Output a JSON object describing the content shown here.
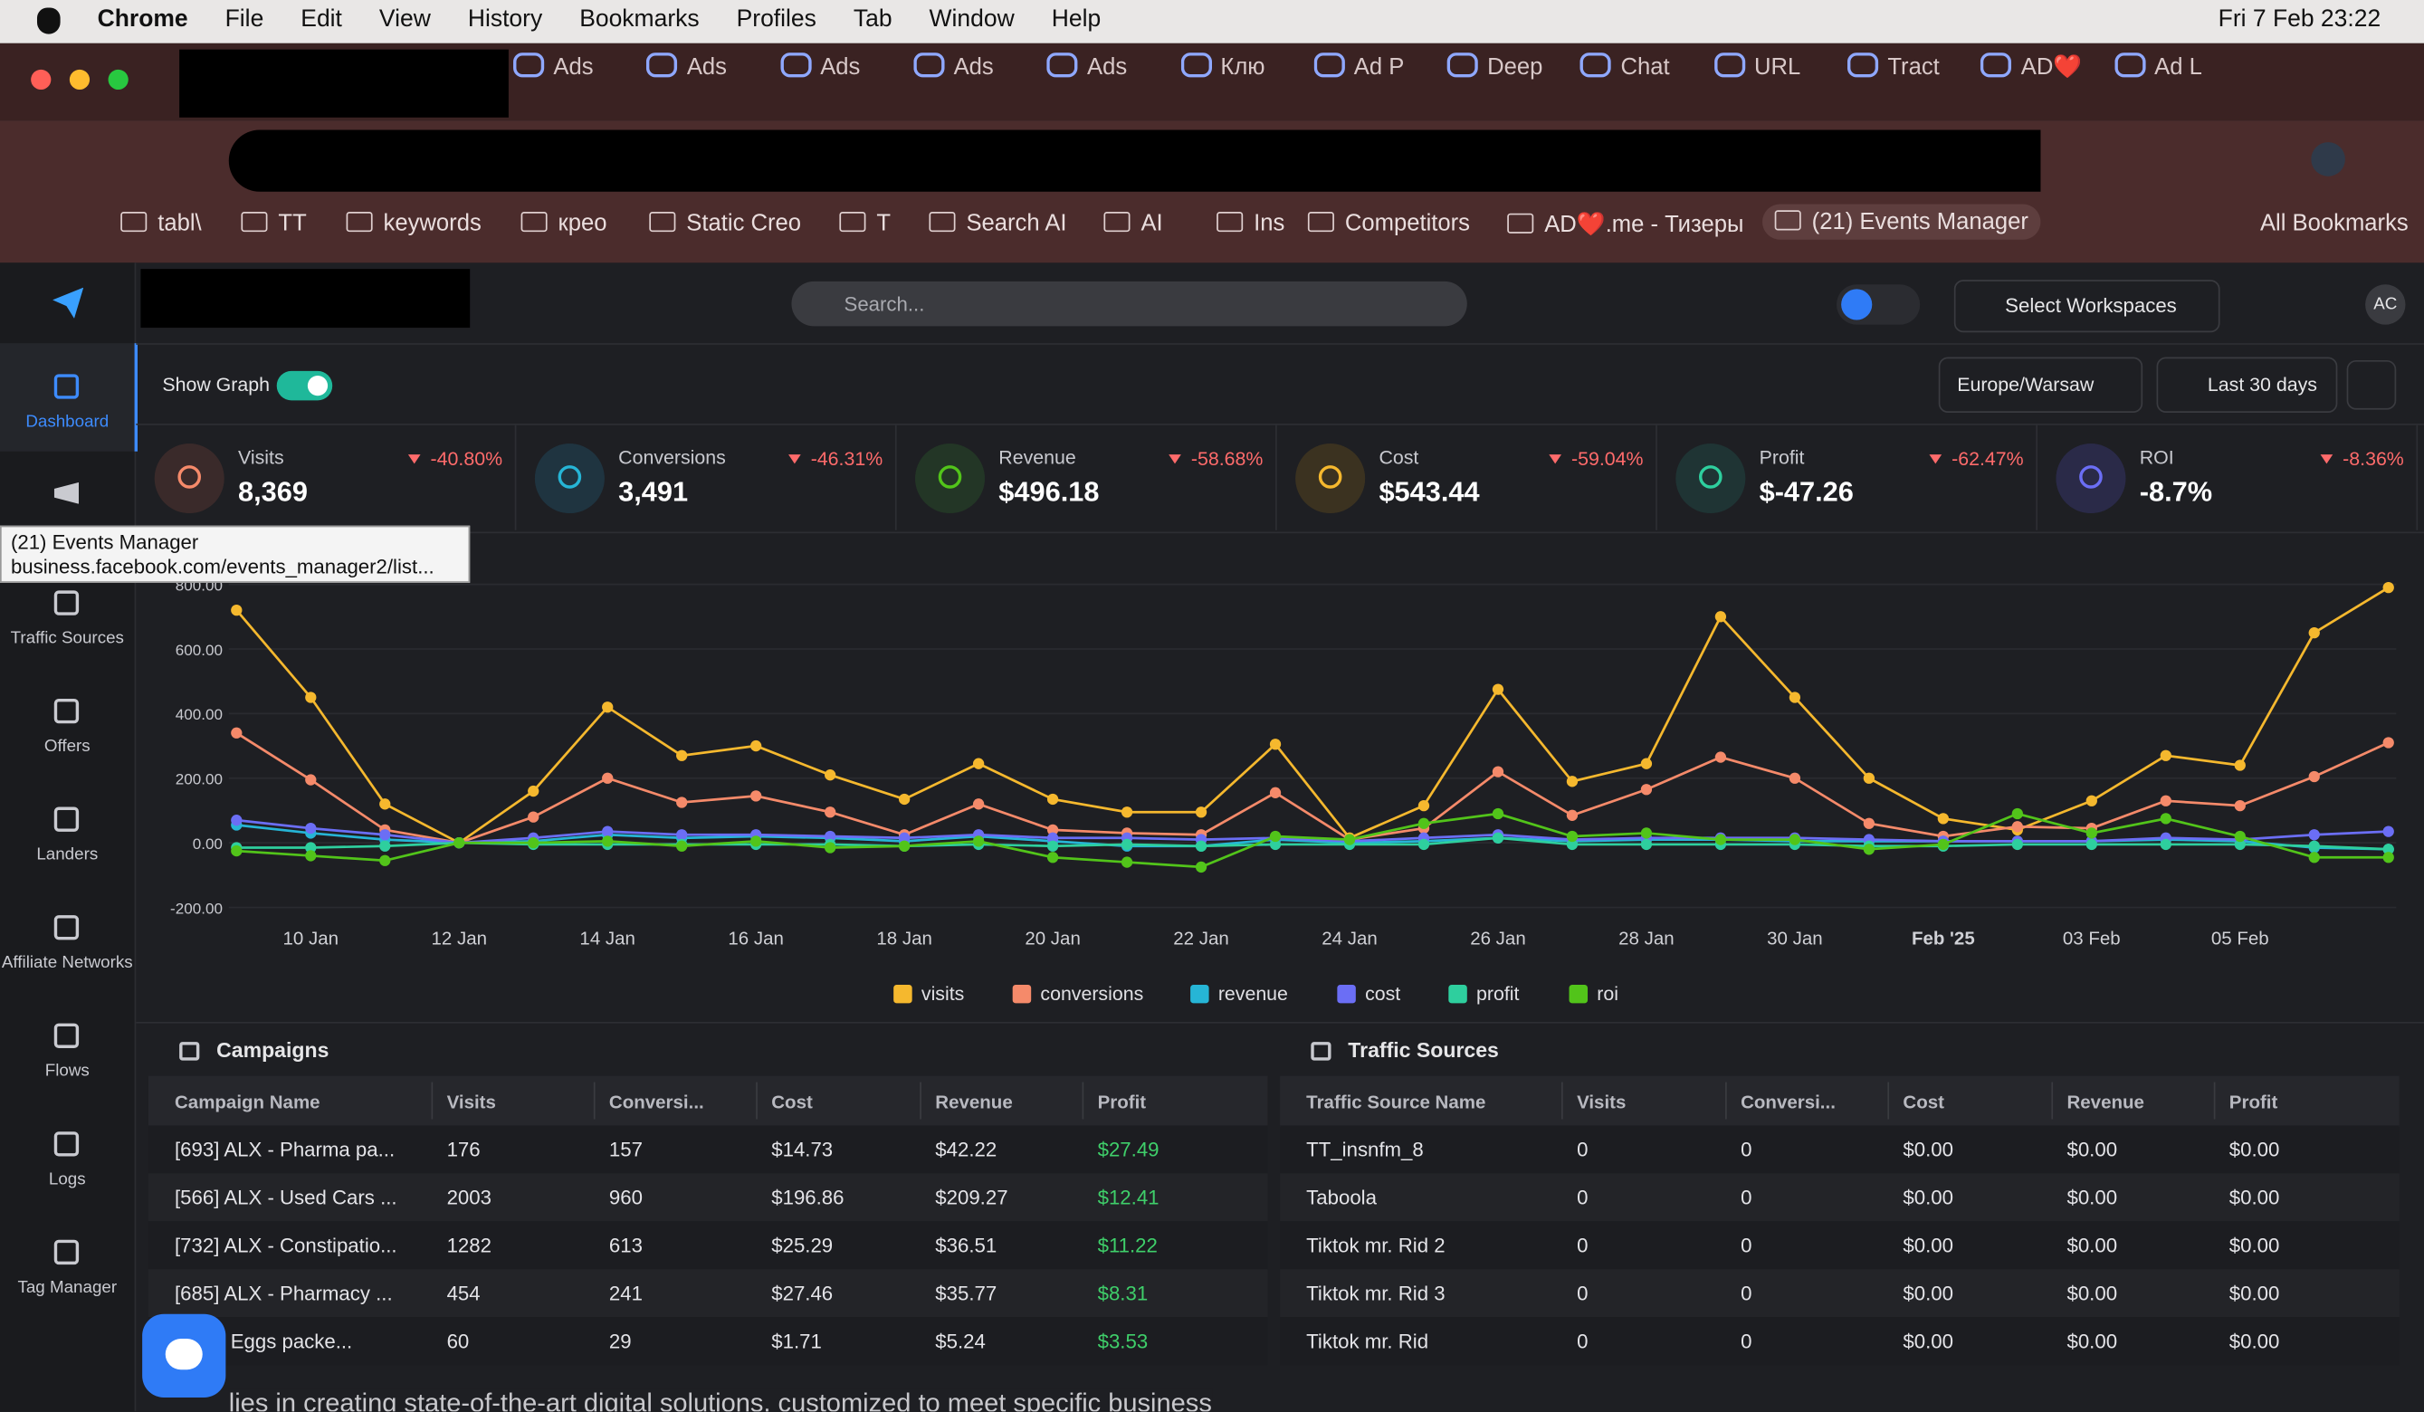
{
  "menubar": {
    "app": "Chrome",
    "menus": [
      "File",
      "Edit",
      "View",
      "History",
      "Bookmarks",
      "Profiles",
      "Tab",
      "Window",
      "Help"
    ],
    "clock": "Fri 7 Feb  23:22"
  },
  "tabs": [
    "Ads",
    "Ads",
    "Ads",
    "Ads",
    "Ads",
    "Клю",
    "Ad P",
    "Deep",
    "Chat",
    "URL",
    "Tract",
    "AD❤️",
    "Ad L"
  ],
  "bookmarks": {
    "items": [
      "tabl\\",
      "TT",
      "keywords",
      "крео",
      "Static Creo",
      "T",
      "Search AI",
      "AI",
      "Ins",
      "Competitors",
      "AD❤️.me - Тизеры",
      "(21) Events Manager"
    ],
    "all": "All Bookmarks"
  },
  "tooltip": {
    "title": "(21) Events Manager",
    "url": "business.facebook.com/events_manager2/list..."
  },
  "header": {
    "search": "Search...",
    "workspaces": "Select Workspaces",
    "avatar": "AC"
  },
  "sidebar": [
    "Dashboard",
    "Traffic Sources",
    "Offers",
    "Landers",
    "Affiliate Networks",
    "Flows",
    "Logs",
    "Tag Manager"
  ],
  "toolbar": {
    "show_graph": "Show Graph",
    "timezone": "Europe/Warsaw",
    "range": "Last 30 days"
  },
  "stats": [
    {
      "name": "Visits",
      "value": "8,369",
      "change": "-40.80%"
    },
    {
      "name": "Conversions",
      "value": "3,491",
      "change": "-46.31%"
    },
    {
      "name": "Revenue",
      "value": "$496.18",
      "change": "-58.68%"
    },
    {
      "name": "Cost",
      "value": "$543.44",
      "change": "-59.04%"
    },
    {
      "name": "Profit",
      "value": "$-47.26",
      "change": "-62.47%"
    },
    {
      "name": "ROI",
      "value": "-8.7%",
      "change": "-8.36%"
    }
  ],
  "chart_data": {
    "type": "line",
    "categories": [
      null,
      "10 Jan",
      null,
      "12 Jan",
      null,
      "14 Jan",
      null,
      "16 Jan",
      null,
      "18 Jan",
      null,
      "20 Jan",
      null,
      "22 Jan",
      null,
      "24 Jan",
      null,
      "26 Jan",
      null,
      "28 Jan",
      null,
      "30 Jan",
      null,
      "Feb '25",
      null,
      "03 Feb",
      null,
      "05 Feb",
      null,
      null
    ],
    "ylim": [
      -200,
      800
    ],
    "yticks": [
      {
        "value": -200,
        "label": "-200.00"
      },
      {
        "value": 0,
        "label": "0.00"
      },
      {
        "value": 200,
        "label": "200.00"
      },
      {
        "value": 400,
        "label": "400.00"
      },
      {
        "value": 600,
        "label": "600.00"
      },
      {
        "value": 800,
        "label": "800.00"
      }
    ],
    "series": [
      {
        "name": "visits",
        "color": "#f5b82e",
        "values": [
          720,
          450,
          120,
          0,
          160,
          420,
          270,
          300,
          210,
          135,
          245,
          135,
          95,
          95,
          305,
          15,
          115,
          475,
          190,
          245,
          700,
          450,
          200,
          75,
          40,
          130,
          270,
          240,
          650,
          790
        ]
      },
      {
        "name": "conversions",
        "color": "#f58a6a",
        "values": [
          340,
          195,
          40,
          0,
          80,
          200,
          125,
          145,
          95,
          25,
          120,
          40,
          30,
          25,
          155,
          10,
          45,
          220,
          85,
          165,
          265,
          200,
          60,
          20,
          50,
          45,
          130,
          115,
          205,
          310
        ]
      },
      {
        "name": "revenue",
        "color": "#26b5d6",
        "values": [
          55,
          30,
          10,
          0,
          5,
          25,
          15,
          20,
          15,
          5,
          20,
          5,
          -10,
          -10,
          10,
          0,
          5,
          15,
          5,
          10,
          10,
          5,
          5,
          5,
          5,
          5,
          10,
          5,
          -15,
          -20
        ]
      },
      {
        "name": "cost",
        "color": "#6b6ef5",
        "values": [
          70,
          45,
          25,
          0,
          15,
          35,
          25,
          25,
          20,
          15,
          25,
          15,
          15,
          10,
          15,
          5,
          15,
          25,
          10,
          15,
          15,
          15,
          10,
          5,
          5,
          5,
          15,
          10,
          25,
          35
        ]
      },
      {
        "name": "profit",
        "color": "#2ecf9e",
        "values": [
          -15,
          -15,
          -10,
          0,
          -5,
          -5,
          -5,
          -5,
          -5,
          -10,
          -5,
          -10,
          -5,
          -10,
          -5,
          -5,
          -5,
          15,
          -5,
          -5,
          -5,
          -5,
          -10,
          -10,
          -5,
          -5,
          -5,
          -5,
          -10,
          -20
        ]
      },
      {
        "name": "roi",
        "color": "#52c41a",
        "values": [
          -25,
          -40,
          -55,
          0,
          0,
          5,
          -10,
          5,
          -15,
          -10,
          5,
          -45,
          -60,
          -75,
          20,
          10,
          60,
          90,
          20,
          30,
          10,
          10,
          -20,
          -5,
          90,
          30,
          75,
          20,
          -45,
          -45
        ]
      }
    ]
  },
  "campaigns": {
    "title": "Campaigns",
    "columns": [
      "Campaign Name",
      "Visits",
      "Conversi...",
      "Cost",
      "Revenue",
      "Profit"
    ],
    "rows": [
      [
        "[693] ALX - Pharma pa...",
        "176",
        "157",
        "$14.73",
        "$42.22",
        "$27.49"
      ],
      [
        "[566] ALX - Used Cars ...",
        "2003",
        "960",
        "$196.86",
        "$209.27",
        "$12.41"
      ],
      [
        "[732] ALX - Constipatio...",
        "1282",
        "613",
        "$25.29",
        "$36.51",
        "$11.22"
      ],
      [
        "[685] ALX - Pharmacy ...",
        "454",
        "241",
        "$27.46",
        "$35.77",
        "$8.31"
      ],
      [
        "ALX - Eggs packe...",
        "60",
        "29",
        "$1.71",
        "$5.24",
        "$3.53"
      ]
    ]
  },
  "traffic_sources": {
    "title": "Traffic Sources",
    "columns": [
      "Traffic Source Name",
      "Visits",
      "Conversi...",
      "Cost",
      "Revenue",
      "Profit"
    ],
    "rows": [
      [
        "TT_insnfm_8",
        "0",
        "0",
        "$0.00",
        "$0.00",
        "$0.00"
      ],
      [
        "Taboola",
        "0",
        "0",
        "$0.00",
        "$0.00",
        "$0.00"
      ],
      [
        "Tiktok mr. Rid 2",
        "0",
        "0",
        "$0.00",
        "$0.00",
        "$0.00"
      ],
      [
        "Tiktok mr. Rid 3",
        "0",
        "0",
        "$0.00",
        "$0.00",
        "$0.00"
      ],
      [
        "Tiktok mr. Rid",
        "0",
        "0",
        "$0.00",
        "$0.00",
        "$0.00"
      ]
    ]
  },
  "footer_text": "lies in creating state-of-the-art digital solutions, customized to meet specific business"
}
